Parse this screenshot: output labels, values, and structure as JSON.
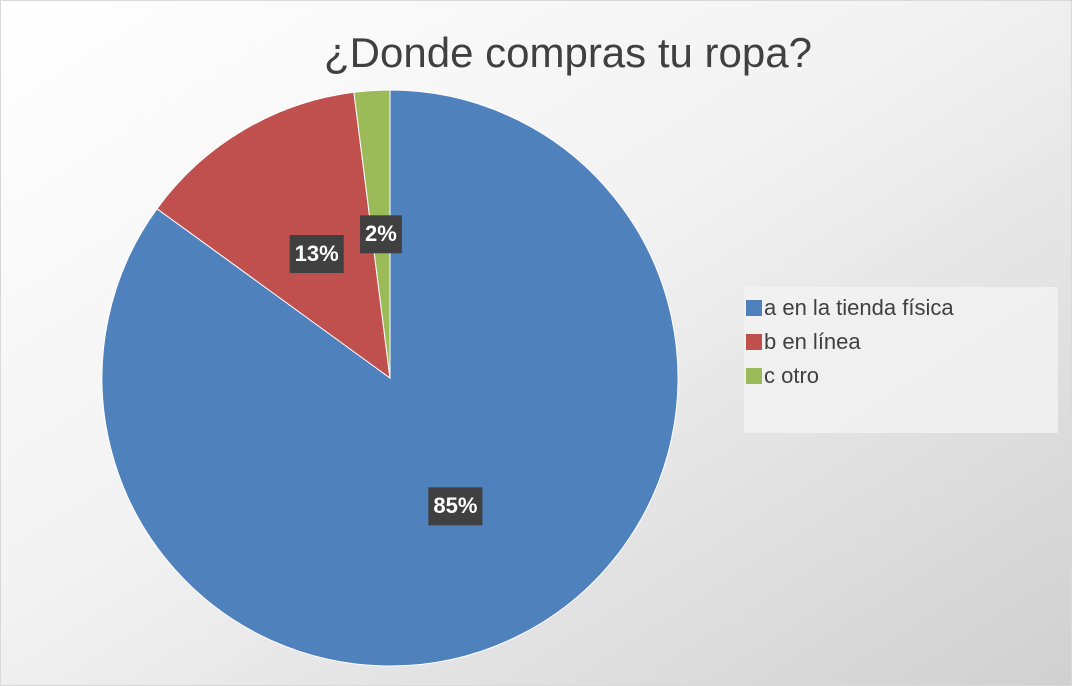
{
  "chart_data": {
    "type": "pie",
    "title": "¿Donde compras tu ropa?",
    "categories": [
      "a en la tienda física",
      "b en línea",
      "c otro"
    ],
    "values": [
      85,
      13,
      2
    ],
    "value_labels": [
      "85%",
      "13%",
      "2%"
    ],
    "colors": [
      "#4f81bd",
      "#c0504d",
      "#9bbb59"
    ],
    "legend": "right"
  }
}
